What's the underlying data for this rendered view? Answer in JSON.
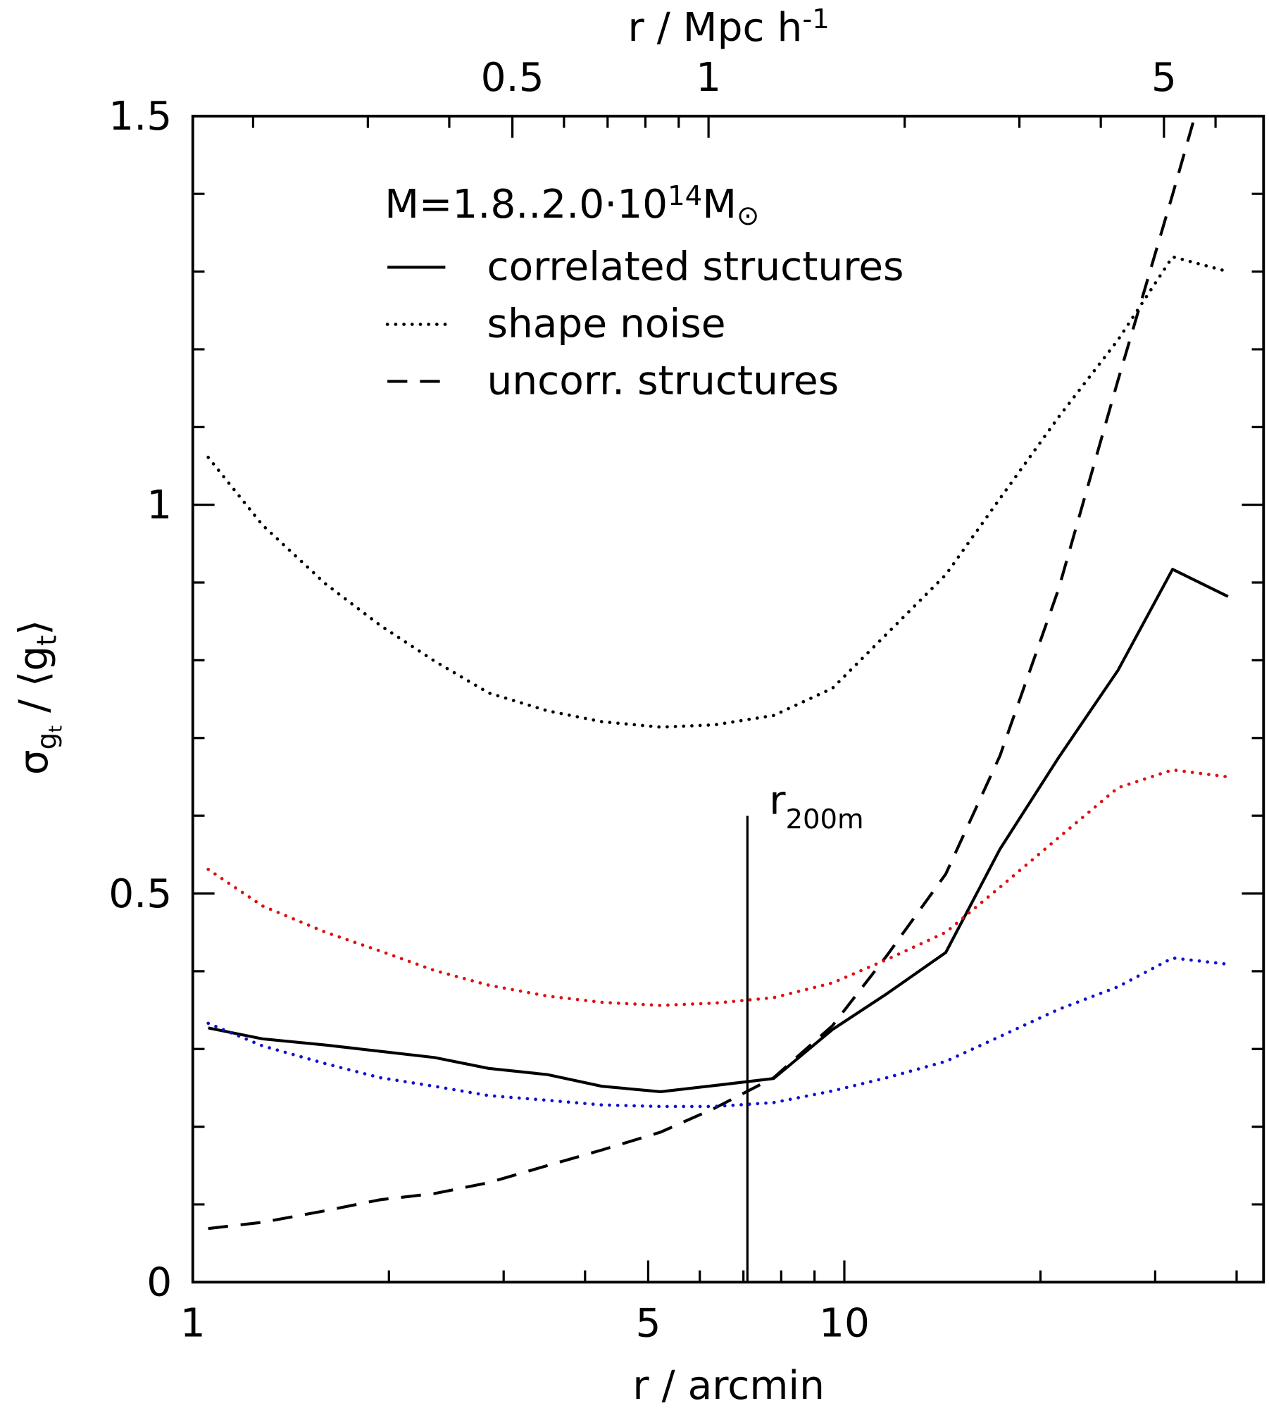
{
  "chart_data": {
    "type": "line",
    "xlabel": "r / arcmin",
    "x2label": {
      "text": "r / Mpc h",
      "sup": "-1"
    },
    "ylabel": {
      "sigma": "σ",
      "sub1": "g",
      "sub2": "t",
      "mid": "/ ⟨g",
      "sub3": "t",
      "end": "⟩"
    },
    "xscale": "log",
    "xlim": [
      1,
      44
    ],
    "xticks": [
      1,
      5,
      10
    ],
    "xminorticks": [
      2,
      3,
      4,
      6,
      7,
      8,
      9,
      20,
      30,
      40
    ],
    "x2lim": [
      0.1616,
      7.11
    ],
    "x2ticks": [
      0.5,
      1,
      5
    ],
    "x2minorticks": [
      0.2,
      0.3,
      0.4,
      0.6,
      0.7,
      0.8,
      0.9,
      2,
      3,
      4,
      6
    ],
    "ylim": [
      0,
      1.5
    ],
    "yticks": [
      0,
      0.5,
      1,
      1.5
    ],
    "yminorticks": [
      0.1,
      0.2,
      0.3,
      0.4,
      0.6,
      0.7,
      0.8,
      0.9,
      1.1,
      1.2,
      1.3,
      1.4
    ],
    "legend_title": {
      "main": "M=1.8..2.0·10",
      "sup": "14",
      "m": "M",
      "sun": "⊙"
    },
    "x": [
      1.056,
      1.279,
      1.6,
      1.939,
      2.349,
      2.845,
      3.502,
      4.244,
      5.224,
      6.33,
      7.79,
      9.59,
      11.62,
      14.31,
      17.33,
      21.33,
      26.3,
      31.9,
      38.8
    ],
    "series": [
      {
        "name": "correlated structures",
        "color": "#000000",
        "style": "solid",
        "values": [
          0.327,
          0.313,
          0.305,
          0.297,
          0.289,
          0.275,
          0.267,
          0.252,
          0.245,
          0.253,
          0.262,
          0.325,
          0.371,
          0.424,
          0.557,
          0.675,
          0.787,
          0.917,
          0.882
        ]
      },
      {
        "name": "shape noise",
        "color": "#000000",
        "style": "dotted",
        "values": [
          1.061,
          0.974,
          0.898,
          0.845,
          0.799,
          0.758,
          0.735,
          0.721,
          0.714,
          0.717,
          0.729,
          0.764,
          0.834,
          0.91,
          1.008,
          1.113,
          1.212,
          1.319,
          1.3
        ]
      },
      {
        "name": "uncorr. structures",
        "color": "#000000",
        "style": "dashed",
        "values": [
          0.069,
          0.077,
          0.092,
          0.106,
          0.114,
          0.128,
          0.15,
          0.17,
          0.193,
          0.224,
          0.263,
          0.33,
          0.42,
          0.525,
          0.677,
          0.892,
          1.16,
          1.399,
          1.65
        ]
      },
      {
        "color": "#dd1111",
        "style": "dotted",
        "values": [
          0.531,
          0.484,
          0.45,
          0.426,
          0.401,
          0.382,
          0.368,
          0.36,
          0.356,
          0.359,
          0.366,
          0.385,
          0.415,
          0.45,
          0.508,
          0.572,
          0.636,
          0.659,
          0.65
        ]
      },
      {
        "color": "#1111cc",
        "style": "dotted",
        "values": [
          0.333,
          0.304,
          0.281,
          0.263,
          0.252,
          0.24,
          0.234,
          0.228,
          0.226,
          0.226,
          0.231,
          0.246,
          0.263,
          0.284,
          0.316,
          0.351,
          0.38,
          0.417,
          0.409
        ]
      }
    ],
    "vline": {
      "x": 7.1,
      "y": [
        0,
        0.6
      ],
      "label": {
        "text": "r",
        "sub": "200m"
      }
    }
  }
}
